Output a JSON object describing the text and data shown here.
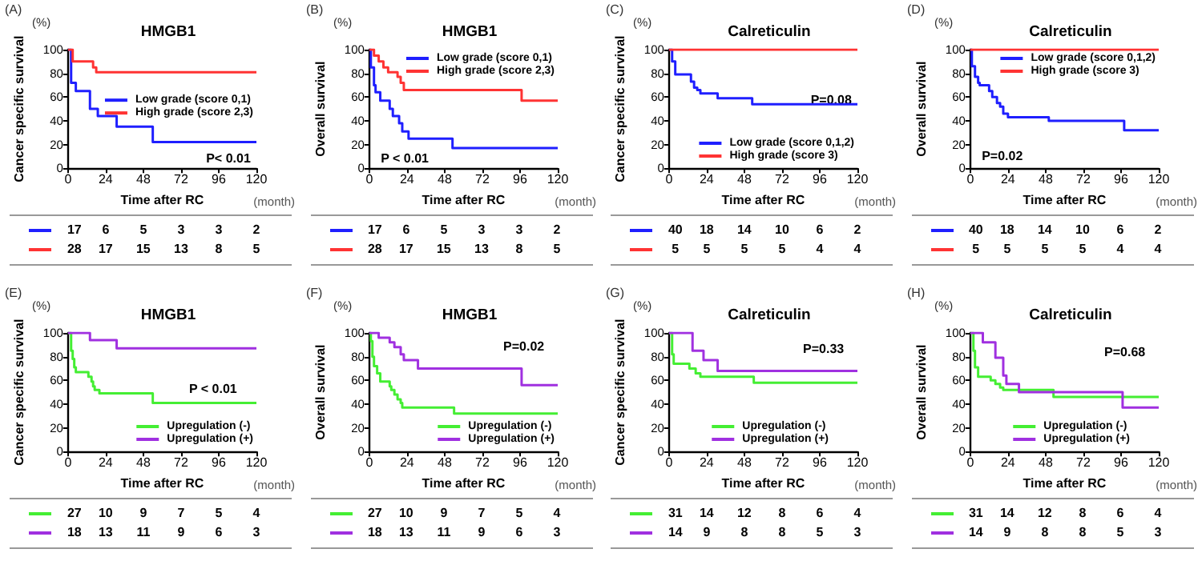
{
  "chart_data": [
    {
      "type": "step",
      "title": "HMGB1",
      "xlabel": "Time after RC",
      "ylabel": "Cancer specific survival",
      "xlim": [
        0,
        120
      ],
      "xticks": [
        0,
        24,
        48,
        72,
        96,
        120
      ],
      "ylim": [
        0,
        100
      ],
      "yticks": [
        0,
        20,
        40,
        60,
        80,
        100
      ],
      "legend": "right",
      "annotations": [
        "(A)",
        "(%)",
        "(month)",
        "P< 0.01",
        "17 6 5 3 3 2",
        "28 17 15 13 8 5"
      ],
      "series": [
        {
          "name": "Low grade (score 0,1)",
          "color": "#1f1fff",
          "x": [
            0,
            2,
            5,
            14,
            19,
            31,
            54,
            120
          ],
          "values": [
            100,
            72,
            65,
            50,
            44,
            35,
            22,
            22
          ]
        },
        {
          "name": "High grade (score 2,3)",
          "color": "#ff3333",
          "x": [
            0,
            3,
            16,
            18,
            120
          ],
          "values": [
            100,
            90,
            85,
            81,
            81
          ]
        }
      ]
    },
    {
      "type": "step",
      "title": "HMGB1",
      "xlabel": "Time after RC",
      "ylabel": "Overall survival",
      "xlim": [
        0,
        120
      ],
      "xticks": [
        0,
        24,
        48,
        72,
        96,
        120
      ],
      "ylim": [
        0,
        100
      ],
      "yticks": [
        0,
        20,
        40,
        60,
        80,
        100
      ],
      "legend": "top right",
      "annotations": [
        "(B)",
        "(%)",
        "(month)",
        "P < 0.01",
        "17 6 5 3 3 2",
        "28 17 15 13 8 5"
      ],
      "series": [
        {
          "name": "Low grade (score 0,1)",
          "color": "#1f1fff",
          "x": [
            0,
            1,
            3,
            4,
            7,
            13,
            15,
            19,
            21,
            25,
            53,
            120
          ],
          "values": [
            100,
            85,
            70,
            64,
            57,
            50,
            44,
            38,
            31,
            25,
            17,
            17
          ]
        },
        {
          "name": "High grade (score 2,3)",
          "color": "#ff3333",
          "x": [
            0,
            3,
            6,
            9,
            12,
            18,
            20,
            22,
            97,
            120
          ],
          "values": [
            100,
            95,
            90,
            85,
            81,
            77,
            72,
            66,
            57,
            57
          ]
        }
      ]
    },
    {
      "type": "step",
      "title": "Calreticulin",
      "xlabel": "Time after RC",
      "ylabel": "Cancer specific survival",
      "xlim": [
        0,
        120
      ],
      "xticks": [
        0,
        24,
        48,
        72,
        96,
        120
      ],
      "ylim": [
        0,
        100
      ],
      "yticks": [
        0,
        20,
        40,
        60,
        80,
        100
      ],
      "legend": "bottom right",
      "annotations": [
        "(C)",
        "(%)",
        "(month)",
        "P=0.08",
        "40 18 14 10 6 2",
        "5 5 5 5 4 4"
      ],
      "series": [
        {
          "name": "Low grade (score 0,1,2)",
          "color": "#1f1fff",
          "x": [
            0,
            2,
            4,
            14,
            16,
            18,
            20,
            31,
            53,
            120
          ],
          "values": [
            100,
            90,
            79,
            73,
            68,
            66,
            63,
            59,
            54,
            54
          ]
        },
        {
          "name": "High grade (score 3)",
          "color": "#ff3333",
          "x": [
            0,
            120
          ],
          "values": [
            100,
            100
          ]
        }
      ]
    },
    {
      "type": "step",
      "title": "Calreticulin",
      "xlabel": "Time after RC",
      "ylabel": "Overall survival",
      "xlim": [
        0,
        120
      ],
      "xticks": [
        0,
        24,
        48,
        72,
        96,
        120
      ],
      "ylim": [
        0,
        100
      ],
      "yticks": [
        0,
        20,
        40,
        60,
        80,
        100
      ],
      "legend": "top right",
      "annotations": [
        "(D)",
        "(%)",
        "(month)",
        "P=0.02",
        "40 18 14 10 6 2",
        "5 5 5 5 4 4"
      ],
      "series": [
        {
          "name": "Low grade (score 0,1,2)",
          "color": "#1f1fff",
          "x": [
            0,
            1,
            3,
            5,
            6,
            12,
            14,
            17,
            19,
            21,
            24,
            50,
            98,
            120
          ],
          "values": [
            100,
            86,
            77,
            72,
            70,
            65,
            60,
            55,
            52,
            46,
            43,
            40,
            32,
            32
          ]
        },
        {
          "name": "High grade (score 3)",
          "color": "#ff3333",
          "x": [
            0,
            120
          ],
          "values": [
            100,
            100
          ]
        }
      ]
    },
    {
      "type": "step",
      "title": "HMGB1",
      "xlabel": "Time after RC",
      "ylabel": "Cancer specific survival",
      "xlim": [
        0,
        120
      ],
      "xticks": [
        0,
        24,
        48,
        72,
        96,
        120
      ],
      "ylim": [
        0,
        100
      ],
      "yticks": [
        0,
        20,
        40,
        60,
        80,
        100
      ],
      "legend": "bottom right",
      "annotations": [
        "(E)",
        "(%)",
        "(month)",
        "P < 0.01",
        "27 10 9 7 5 4",
        "18 13 11 9 6 3"
      ],
      "series": [
        {
          "name": "Upregulation (-)",
          "color": "#44ee33",
          "x": [
            0,
            2,
            3,
            4,
            5,
            13,
            15,
            16,
            17,
            20,
            54,
            120
          ],
          "values": [
            100,
            85,
            78,
            71,
            67,
            63,
            59,
            55,
            52,
            49,
            41,
            41
          ]
        },
        {
          "name": "Upregulation (+)",
          "color": "#a030e0",
          "x": [
            0,
            14,
            31,
            120
          ],
          "values": [
            100,
            94,
            87,
            87
          ]
        }
      ]
    },
    {
      "type": "step",
      "title": "HMGB1",
      "xlabel": "Time after RC",
      "ylabel": "Overall survival",
      "xlim": [
        0,
        120
      ],
      "xticks": [
        0,
        24,
        48,
        72,
        96,
        120
      ],
      "ylim": [
        0,
        100
      ],
      "yticks": [
        0,
        20,
        40,
        60,
        80,
        100
      ],
      "legend": "bottom right",
      "annotations": [
        "(F)",
        "(%)",
        "(month)",
        "P=0.02",
        "27 10 9 7 5 4",
        "18 13 11 9 6 3"
      ],
      "series": [
        {
          "name": "Upregulation (-)",
          "color": "#44ee33",
          "x": [
            0,
            1,
            2,
            3,
            5,
            7,
            13,
            14,
            16,
            18,
            20,
            21,
            54,
            120
          ],
          "values": [
            100,
            93,
            80,
            72,
            66,
            59,
            55,
            52,
            48,
            44,
            41,
            37,
            32,
            32
          ]
        },
        {
          "name": "Upregulation (+)",
          "color": "#a030e0",
          "x": [
            0,
            6,
            13,
            16,
            20,
            22,
            31,
            97,
            120
          ],
          "values": [
            100,
            96,
            92,
            88,
            82,
            77,
            70,
            56,
            56
          ]
        }
      ]
    },
    {
      "type": "step",
      "title": "Calreticulin",
      "xlabel": "Time after RC",
      "ylabel": "Cancer specific survival",
      "xlim": [
        0,
        120
      ],
      "xticks": [
        0,
        24,
        48,
        72,
        96,
        120
      ],
      "ylim": [
        0,
        100
      ],
      "yticks": [
        0,
        20,
        40,
        60,
        80,
        100
      ],
      "legend": "bottom",
      "annotations": [
        "(G)",
        "(%)",
        "(month)",
        "P=0.33",
        "31 14 12 8 6 4",
        "14 9 8 8 5 3"
      ],
      "series": [
        {
          "name": "Upregulation (-)",
          "color": "#44ee33",
          "x": [
            0,
            2,
            3,
            13,
            17,
            20,
            54,
            120
          ],
          "values": [
            100,
            82,
            74,
            70,
            66,
            63,
            58,
            58
          ]
        },
        {
          "name": "Upregulation (+)",
          "color": "#a030e0",
          "x": [
            0,
            15,
            22,
            31,
            120
          ],
          "values": [
            100,
            85,
            77,
            68,
            68
          ]
        }
      ]
    },
    {
      "type": "step",
      "title": "Calreticulin",
      "xlabel": "Time after RC",
      "ylabel": "Overall survival",
      "xlim": [
        0,
        120
      ],
      "xticks": [
        0,
        24,
        48,
        72,
        96,
        120
      ],
      "ylim": [
        0,
        100
      ],
      "yticks": [
        0,
        20,
        40,
        60,
        80,
        100
      ],
      "legend": "bottom",
      "annotations": [
        "(H)",
        "(%)",
        "(month)",
        "P=0.68",
        "31 14 12 8 6 4",
        "14 9 8 8 5 3"
      ],
      "series": [
        {
          "name": "Upregulation (-)",
          "color": "#44ee33",
          "x": [
            0,
            2,
            3,
            5,
            13,
            16,
            19,
            21,
            53,
            120
          ],
          "values": [
            100,
            85,
            71,
            63,
            60,
            57,
            54,
            52,
            46,
            46
          ]
        },
        {
          "name": "Upregulation (+)",
          "color": "#a030e0",
          "x": [
            0,
            8,
            16,
            21,
            23,
            31,
            97,
            120
          ],
          "values": [
            100,
            92,
            79,
            64,
            57,
            50,
            37,
            37
          ]
        }
      ]
    }
  ]
}
